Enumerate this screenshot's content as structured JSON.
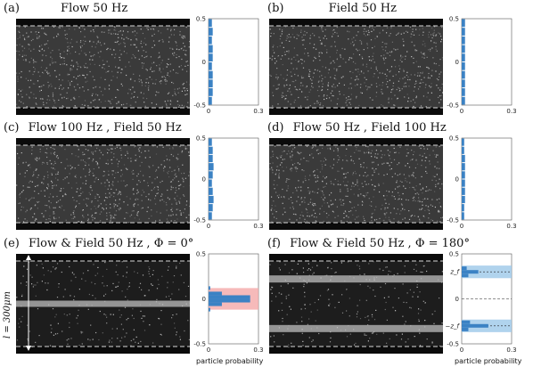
{
  "panels": [
    {
      "id": "a",
      "tag": "(a)",
      "title": "Flow 50 Hz",
      "pattern": "uniform"
    },
    {
      "id": "b",
      "tag": "(b)",
      "title": "Field 50 Hz",
      "pattern": "uniform"
    },
    {
      "id": "c",
      "tag": "(c)",
      "title": "Flow 100 Hz , Field 50 Hz",
      "pattern": "uniform"
    },
    {
      "id": "d",
      "tag": "(d)",
      "title": "Flow 50 Hz , Field 100 Hz",
      "pattern": "uniform"
    },
    {
      "id": "e",
      "tag": "(e)",
      "title": "Flow & Field 50 Hz , Φ = 0°",
      "pattern": "center"
    },
    {
      "id": "f",
      "tag": "(f)",
      "title": "Flow & Field 50 Hz , Φ = 180°",
      "pattern": "split"
    }
  ],
  "axis": {
    "y_ticks": [
      "0.5",
      "0",
      "-0.5"
    ],
    "x_ticks": [
      "0",
      "0.3"
    ],
    "xlabel": "particle probability",
    "zf_label": "z_f",
    "neg_zf_label": "−z_f"
  },
  "scale_label": "l = 300μm",
  "colors": {
    "hist": "#3b82c4",
    "center_band": "#f4a9a9",
    "zf_band": "#9cc8e8"
  },
  "chart_data": [
    {
      "type": "bar",
      "panel": "a",
      "orientation": "horizontal",
      "xlim": [
        0,
        0.3
      ],
      "ylim": [
        -0.5,
        0.5
      ],
      "y": [
        -0.45,
        -0.35,
        -0.25,
        -0.15,
        -0.05,
        0.05,
        0.15,
        0.25,
        0.35,
        0.45
      ],
      "values": [
        0.02,
        0.025,
        0.025,
        0.025,
        0.02,
        0.025,
        0.025,
        0.02,
        0.025,
        0.02
      ]
    },
    {
      "type": "bar",
      "panel": "b",
      "orientation": "horizontal",
      "xlim": [
        0,
        0.3
      ],
      "ylim": [
        -0.5,
        0.5
      ],
      "y": [
        -0.45,
        -0.35,
        -0.25,
        -0.15,
        -0.05,
        0.05,
        0.15,
        0.25,
        0.35,
        0.45
      ],
      "values": [
        0.02,
        0.02,
        0.02,
        0.02,
        0.02,
        0.02,
        0.02,
        0.02,
        0.02,
        0.02
      ]
    },
    {
      "type": "bar",
      "panel": "c",
      "orientation": "horizontal",
      "xlim": [
        0,
        0.3
      ],
      "ylim": [
        -0.5,
        0.5
      ],
      "y": [
        -0.45,
        -0.35,
        -0.25,
        -0.15,
        -0.05,
        0.05,
        0.15,
        0.25,
        0.35,
        0.45
      ],
      "values": [
        0.02,
        0.025,
        0.03,
        0.025,
        0.02,
        0.025,
        0.03,
        0.025,
        0.025,
        0.02
      ]
    },
    {
      "type": "bar",
      "panel": "d",
      "orientation": "horizontal",
      "xlim": [
        0,
        0.3
      ],
      "ylim": [
        -0.5,
        0.5
      ],
      "y": [
        -0.45,
        -0.35,
        -0.25,
        -0.15,
        -0.05,
        0.05,
        0.15,
        0.25,
        0.35,
        0.45
      ],
      "values": [
        0.015,
        0.015,
        0.02,
        0.02,
        0.02,
        0.02,
        0.02,
        0.02,
        0.015,
        0.015
      ]
    },
    {
      "type": "bar",
      "panel": "e",
      "orientation": "horizontal",
      "xlim": [
        0,
        0.3
      ],
      "ylim": [
        -0.5,
        0.5
      ],
      "y": [
        -0.12,
        -0.06,
        -0.02,
        0.02,
        0.06,
        0.12
      ],
      "values": [
        0.01,
        0.08,
        0.25,
        0.25,
        0.08,
        0.01
      ]
    },
    {
      "type": "bar",
      "panel": "f",
      "orientation": "horizontal",
      "xlim": [
        0,
        0.3
      ],
      "ylim": [
        -0.5,
        0.5
      ],
      "y": [
        -0.34,
        -0.3,
        -0.26,
        0.26,
        0.3,
        0.34
      ],
      "values": [
        0.04,
        0.16,
        0.05,
        0.04,
        0.1,
        0.03
      ]
    }
  ]
}
